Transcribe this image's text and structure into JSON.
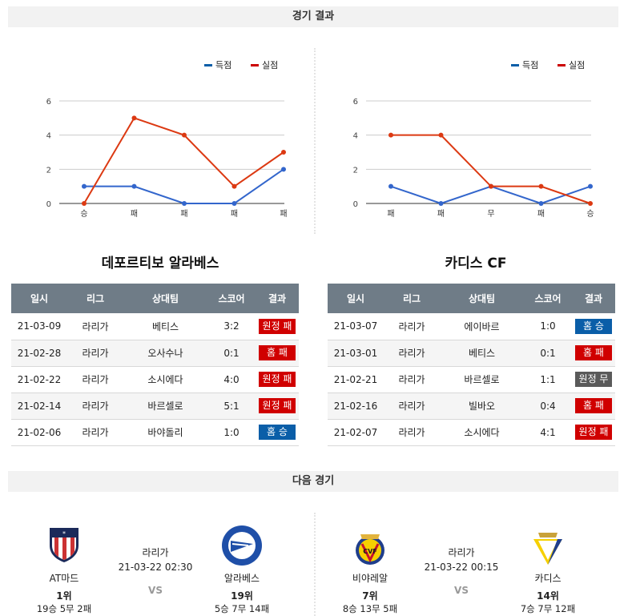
{
  "sections": {
    "results": "경기 결과",
    "next": "다음 경기"
  },
  "colors": {
    "scored": "#3366cc",
    "conceded": "#dc3912",
    "legend_scored": "#0a5ea8",
    "legend_conceded": "#cc0000",
    "loss": "#d00000",
    "win": "#0a5ea8",
    "draw": "#5a5a5a",
    "header": "#6f7c87"
  },
  "chart_data": [
    {
      "type": "line",
      "legend": [
        "득점",
        "실점"
      ],
      "legend_placement": "top-right",
      "categories": [
        "승",
        "패",
        "패",
        "패",
        "패"
      ],
      "yticks": [
        "0",
        "2",
        "4",
        "6"
      ],
      "ylim": [
        0,
        6
      ],
      "grid": true,
      "series": [
        {
          "name": "득점",
          "values": [
            1,
            1,
            0,
            0,
            2
          ]
        },
        {
          "name": "실점",
          "values": [
            0,
            5,
            4,
            1,
            3
          ]
        }
      ]
    },
    {
      "type": "line",
      "legend": [
        "득점",
        "실점"
      ],
      "legend_placement": "top-right",
      "categories": [
        "패",
        "패",
        "무",
        "패",
        "승"
      ],
      "yticks": [
        "0",
        "2",
        "4",
        "6"
      ],
      "ylim": [
        0,
        6
      ],
      "grid": true,
      "series": [
        {
          "name": "득점",
          "values": [
            1,
            0,
            1,
            0,
            1
          ]
        },
        {
          "name": "실점",
          "values": [
            4,
            4,
            1,
            1,
            0
          ]
        }
      ]
    }
  ],
  "teams": [
    {
      "name": "데포르티보 알라베스",
      "headers": [
        "일시",
        "리그",
        "상대팀",
        "스코어",
        "결과"
      ],
      "rows": [
        {
          "date": "21-03-09",
          "league": "라리가",
          "opp": "베티스",
          "score": "3:2",
          "result": "원정 패",
          "type": "loss"
        },
        {
          "date": "21-02-28",
          "league": "라리가",
          "opp": "오사수나",
          "score": "0:1",
          "result": "홈 패",
          "type": "loss"
        },
        {
          "date": "21-02-22",
          "league": "라리가",
          "opp": "소시에다",
          "score": "4:0",
          "result": "원정 패",
          "type": "loss"
        },
        {
          "date": "21-02-14",
          "league": "라리가",
          "opp": "바르셀로",
          "score": "5:1",
          "result": "원정 패",
          "type": "loss"
        },
        {
          "date": "21-02-06",
          "league": "라리가",
          "opp": "바야돌리",
          "score": "1:0",
          "result": "홈 승",
          "type": "win"
        }
      ]
    },
    {
      "name": "카디스 CF",
      "headers": [
        "일시",
        "리그",
        "상대팀",
        "스코어",
        "결과"
      ],
      "rows": [
        {
          "date": "21-03-07",
          "league": "라리가",
          "opp": "에이바르",
          "score": "1:0",
          "result": "홈 승",
          "type": "win"
        },
        {
          "date": "21-03-01",
          "league": "라리가",
          "opp": "베티스",
          "score": "0:1",
          "result": "홈 패",
          "type": "loss"
        },
        {
          "date": "21-02-21",
          "league": "라리가",
          "opp": "바르셀로",
          "score": "1:1",
          "result": "원정 무",
          "type": "draw"
        },
        {
          "date": "21-02-16",
          "league": "라리가",
          "opp": "빌바오",
          "score": "0:4",
          "result": "홈 패",
          "type": "loss"
        },
        {
          "date": "21-02-07",
          "league": "라리가",
          "opp": "소시에다",
          "score": "4:1",
          "result": "원정 패",
          "type": "loss"
        }
      ]
    }
  ],
  "next_matches": [
    {
      "league": "라리가",
      "datetime": "21-03-22 02:30",
      "vs": "VS",
      "home": {
        "name": "AT마드",
        "rank": "1위",
        "record": "19승 5무 2패",
        "logo": "atletico-madrid-crest"
      },
      "away": {
        "name": "알라베스",
        "rank": "19위",
        "record": "5승 7무 14패",
        "logo": "alaves-crest"
      }
    },
    {
      "league": "라리가",
      "datetime": "21-03-22 00:15",
      "vs": "VS",
      "home": {
        "name": "비야레알",
        "rank": "7위",
        "record": "8승 13무 5패",
        "logo": "villarreal-crest"
      },
      "away": {
        "name": "카디스",
        "rank": "14위",
        "record": "7승 7무 12패",
        "logo": "cadiz-crest"
      }
    }
  ]
}
